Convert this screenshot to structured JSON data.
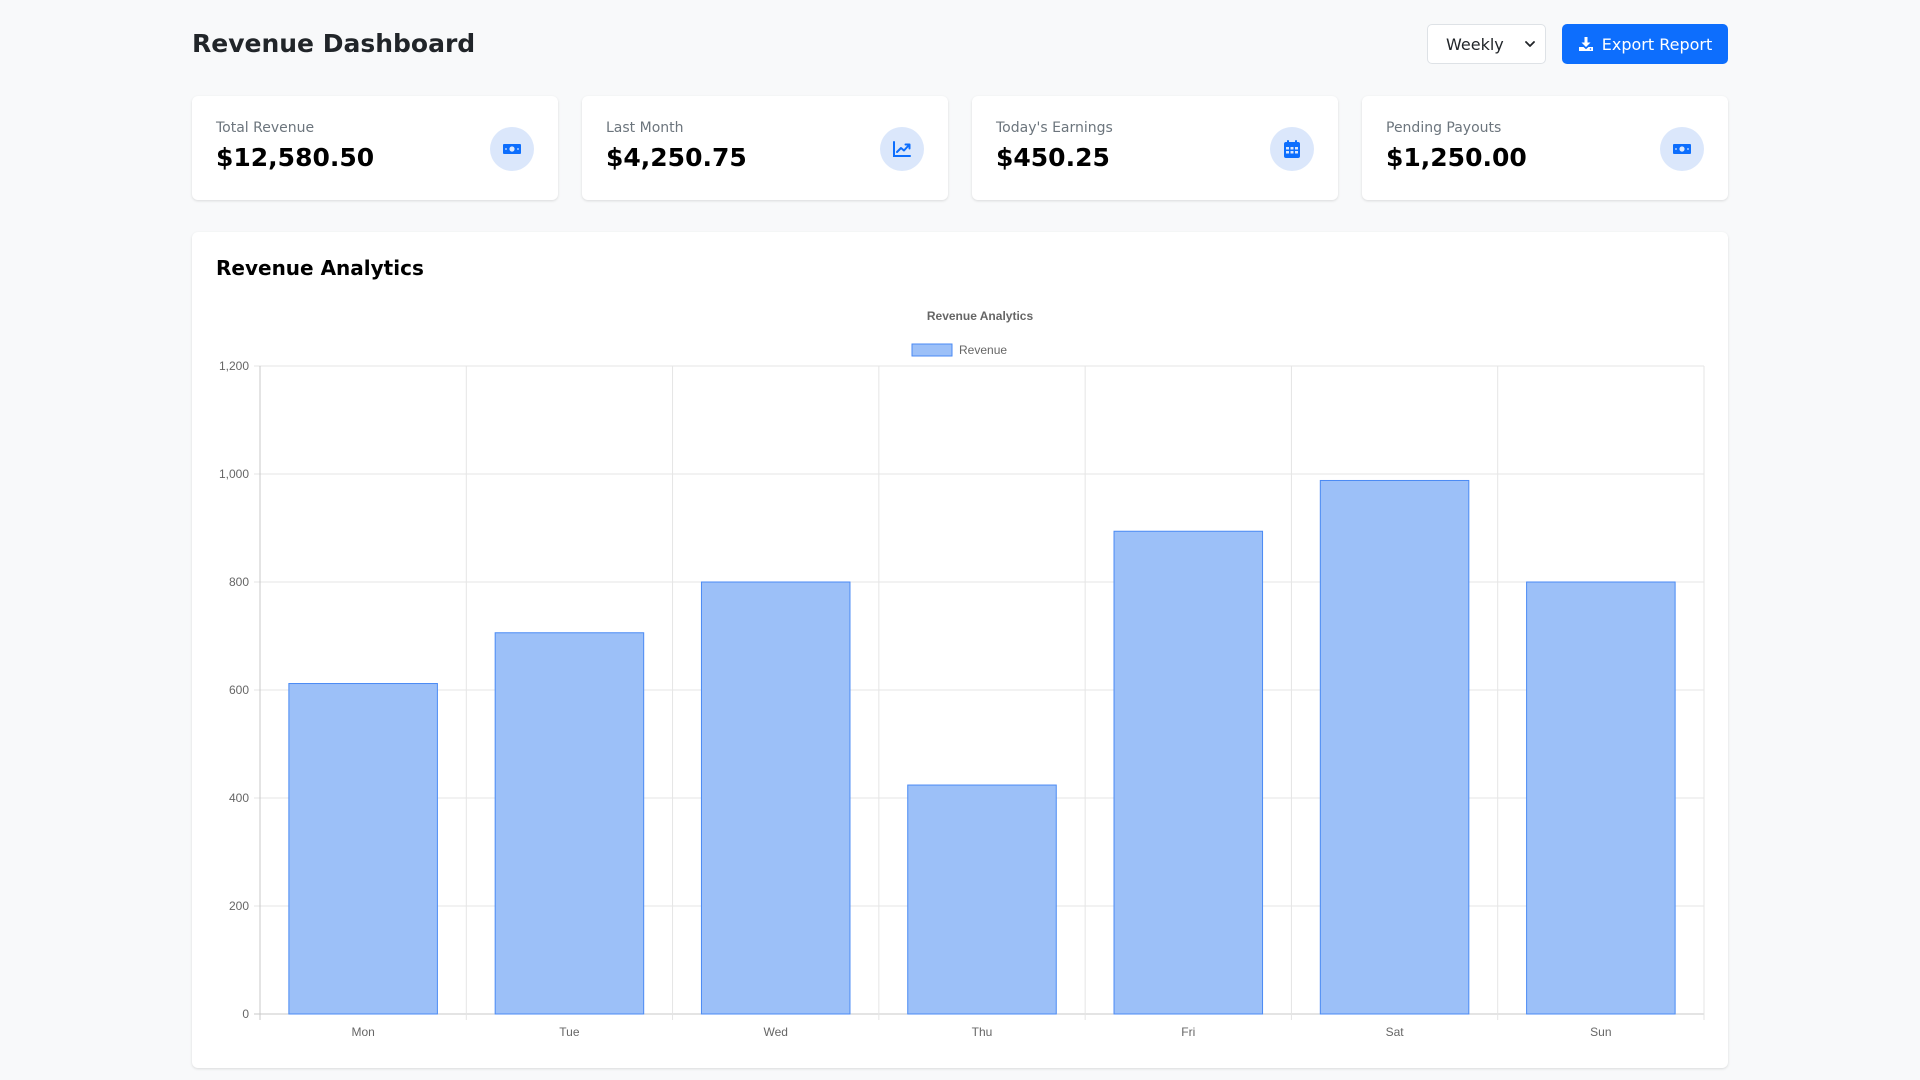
{
  "header": {
    "title": "Revenue Dashboard",
    "period_select": {
      "selected": "Weekly"
    },
    "export_button": {
      "label": "Export Report",
      "icon": "download-icon"
    }
  },
  "stats": [
    {
      "label": "Total Revenue",
      "value": "$12,580.50",
      "icon": "money-bill-icon"
    },
    {
      "label": "Last Month",
      "value": "$4,250.75",
      "icon": "trend-up-icon"
    },
    {
      "label": "Today's Earnings",
      "value": "$450.25",
      "icon": "calendar-icon"
    },
    {
      "label": "Pending Payouts",
      "value": "$1,250.00",
      "icon": "money-bill-icon"
    }
  ],
  "colors": {
    "accent": "#0d6efd",
    "icon_bg": "#dbe7fb",
    "bar_fill": "#9cc0f8",
    "bar_border": "#4a8af4"
  },
  "chart_section": {
    "heading": "Revenue Analytics"
  },
  "chart_data": {
    "type": "bar",
    "title": "Revenue Analytics",
    "categories": [
      "Mon",
      "Tue",
      "Wed",
      "Thu",
      "Fri",
      "Sat",
      "Sun"
    ],
    "series": [
      {
        "name": "Revenue",
        "values": [
          612,
          706,
          800,
          424,
          894,
          988,
          800
        ]
      }
    ],
    "ylim": [
      0,
      1200
    ],
    "yticks": [
      0,
      200,
      400,
      600,
      800,
      1000,
      1200
    ],
    "ytick_labels": [
      "0",
      "200",
      "400",
      "600",
      "800",
      "1,000",
      "1,200"
    ],
    "grid": true,
    "legend": "top-center"
  }
}
